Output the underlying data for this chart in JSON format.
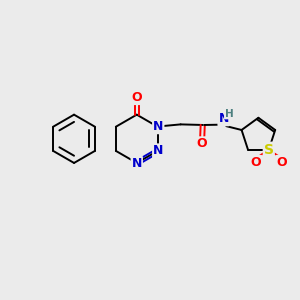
{
  "background_color": "#ebebeb",
  "figsize": [
    3.0,
    3.0
  ],
  "dpi": 100,
  "atom_colors": {
    "C": "#000000",
    "N": "#0000cc",
    "O": "#ff0000",
    "S": "#cccc00",
    "H": "#4d8080",
    "bond": "#000000"
  },
  "bond_lw": 1.4,
  "font_size": 9.0
}
